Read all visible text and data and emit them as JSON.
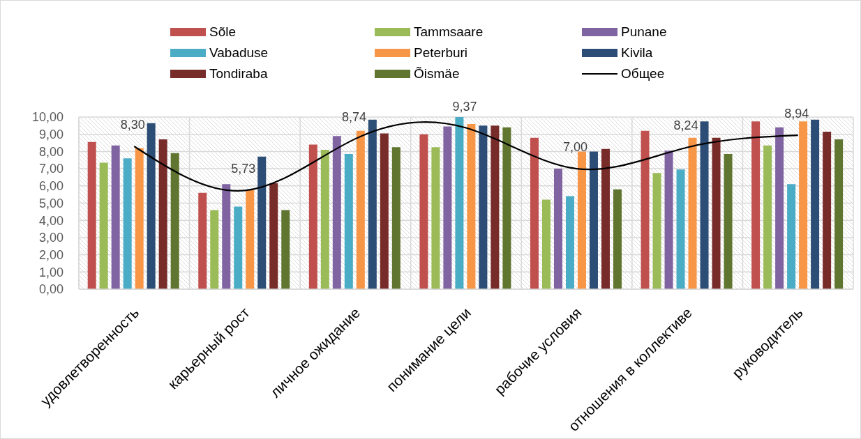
{
  "chart_data": {
    "type": "bar",
    "categories": [
      "удовлетворенность",
      "карьерный рост",
      "личное ожидание",
      "понимание цели",
      "рабочие условия",
      "отношения в коллективе",
      "руководитель"
    ],
    "series": [
      {
        "name": "Sõle",
        "color": "#c0504d",
        "values": [
          8.55,
          5.6,
          8.4,
          9.0,
          8.8,
          9.2,
          9.75
        ]
      },
      {
        "name": "Tammsaare",
        "color": "#9bbb59",
        "values": [
          7.35,
          4.6,
          8.1,
          8.25,
          5.2,
          6.75,
          8.35
        ]
      },
      {
        "name": "Punane",
        "color": "#8064a2",
        "values": [
          8.35,
          6.1,
          8.9,
          9.45,
          7.0,
          8.05,
          9.4
        ]
      },
      {
        "name": "Vabaduse",
        "color": "#4bacc6",
        "values": [
          7.6,
          4.8,
          7.85,
          10.0,
          5.4,
          6.95,
          6.1
        ]
      },
      {
        "name": "Peterburi",
        "color": "#f79646",
        "values": [
          8.2,
          5.75,
          9.2,
          9.6,
          8.0,
          8.8,
          9.75
        ]
      },
      {
        "name": "Kivila",
        "color": "#2c4d75",
        "values": [
          9.65,
          7.7,
          9.85,
          9.5,
          8.0,
          9.75,
          9.85
        ]
      },
      {
        "name": "Tondiraba",
        "color": "#772c2a",
        "values": [
          8.7,
          6.15,
          9.05,
          9.5,
          8.15,
          8.8,
          9.15
        ]
      },
      {
        "name": "Õismäe",
        "color": "#5f7530",
        "values": [
          7.9,
          4.6,
          8.25,
          9.4,
          5.8,
          7.85,
          8.7
        ]
      },
      {
        "name": "Общее",
        "type": "line",
        "color": "#000000",
        "marker": "none",
        "values": [
          8.3,
          5.73,
          8.74,
          9.37,
          7.0,
          8.24,
          8.94
        ],
        "value_labels": [
          "8,30",
          "5,73",
          "8,74",
          "9,37",
          "7,00",
          "8,24",
          "8,94"
        ]
      }
    ],
    "ylim": [
      0,
      10
    ],
    "yticks": [
      {
        "value": 0,
        "label": "0,00"
      },
      {
        "value": 1,
        "label": "1,00"
      },
      {
        "value": 2,
        "label": "2,00"
      },
      {
        "value": 3,
        "label": "3,00"
      },
      {
        "value": 4,
        "label": "4,00"
      },
      {
        "value": 5,
        "label": "5,00"
      },
      {
        "value": 6,
        "label": "6,00"
      },
      {
        "value": 7,
        "label": "7,00"
      },
      {
        "value": 8,
        "label": "8,00"
      },
      {
        "value": 9,
        "label": "9,00"
      },
      {
        "value": 10,
        "label": "10,00"
      }
    ],
    "grid": true,
    "legend": "top"
  }
}
